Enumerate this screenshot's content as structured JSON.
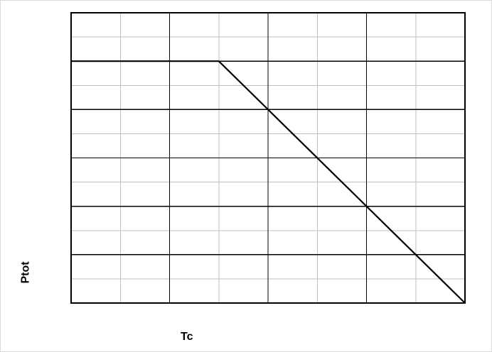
{
  "chart_data": {
    "type": "line",
    "title": "",
    "xlabel": "Tc",
    "ylabel": "Ptot",
    "grid": true,
    "xlim": [
      0,
      8
    ],
    "ylim": [
      0,
      6
    ],
    "x_major_step": 2,
    "x_minor_step": 1,
    "y_major_step": 1,
    "y_minor_step": 0.5,
    "series": [
      {
        "x": [
          0,
          3,
          8
        ],
        "values": [
          5,
          5,
          0
        ]
      }
    ],
    "colors": {
      "line": "#000000",
      "major_grid": "#000000",
      "minor_grid": "#bfbfbf",
      "plot_border": "#000000"
    }
  }
}
